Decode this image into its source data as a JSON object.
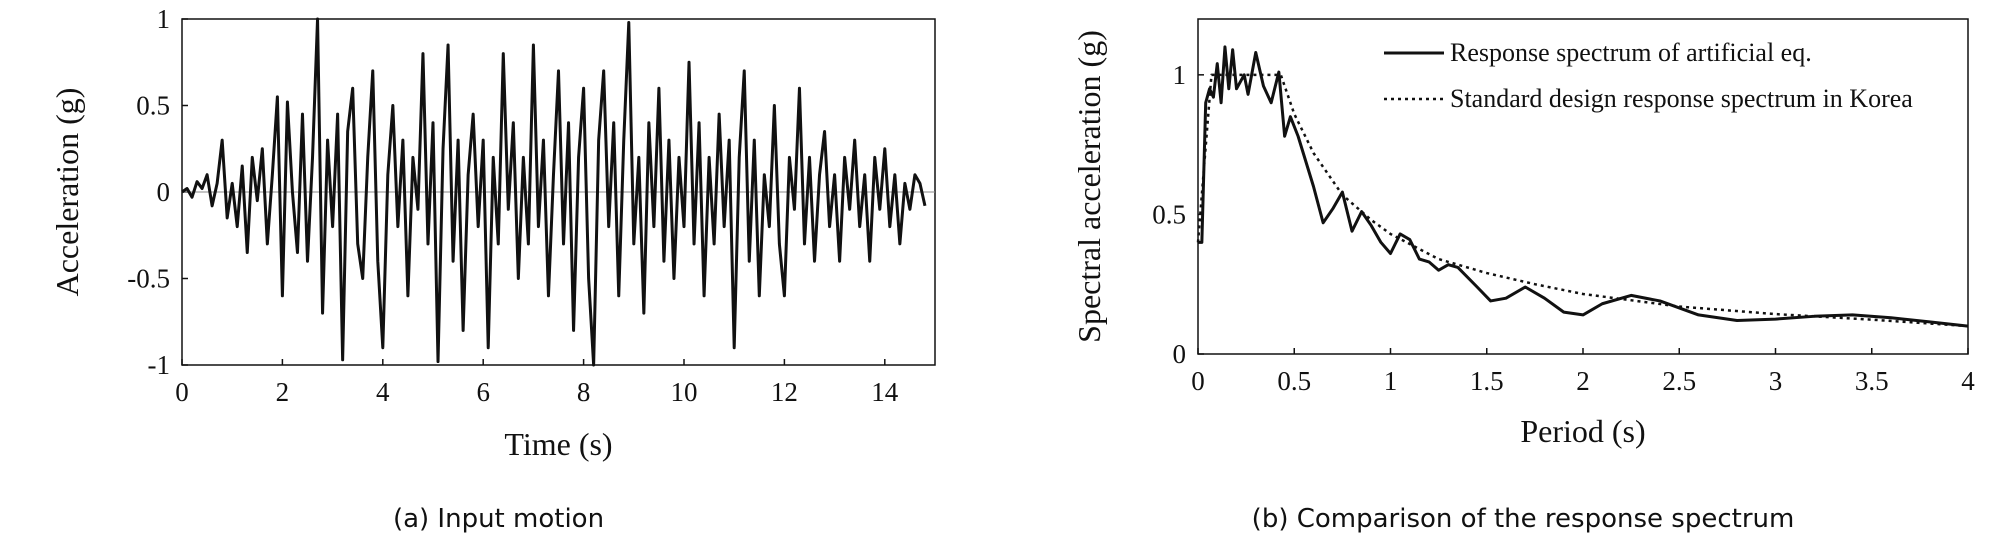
{
  "chart_data": [
    {
      "type": "line",
      "caption": "(a) Input motion",
      "xlabel": "Time (s)",
      "ylabel": "Acceleration (g)",
      "xlim": [
        0,
        15
      ],
      "xticks": [
        0,
        2,
        4,
        6,
        8,
        10,
        12,
        14
      ],
      "ylim": [
        -1,
        1
      ],
      "yticks": [
        -1,
        -0.5,
        0,
        0.5,
        1
      ],
      "x": [
        0,
        0.1,
        0.2,
        0.3,
        0.4,
        0.5,
        0.6,
        0.7,
        0.8,
        0.9,
        1,
        1.1,
        1.2,
        1.3,
        1.4,
        1.5,
        1.6,
        1.7,
        1.8,
        1.9,
        2,
        2.1,
        2.2,
        2.3,
        2.4,
        2.5,
        2.6,
        2.7,
        2.8,
        2.9,
        3,
        3.1,
        3.2,
        3.3,
        3.4,
        3.5,
        3.6,
        3.7,
        3.8,
        3.9,
        4,
        4.1,
        4.2,
        4.3,
        4.4,
        4.5,
        4.6,
        4.7,
        4.8,
        4.9,
        5,
        5.1,
        5.2,
        5.3,
        5.4,
        5.5,
        5.6,
        5.7,
        5.8,
        5.9,
        6,
        6.1,
        6.2,
        6.3,
        6.4,
        6.5,
        6.6,
        6.7,
        6.8,
        6.9,
        7,
        7.1,
        7.2,
        7.3,
        7.4,
        7.5,
        7.6,
        7.7,
        7.8,
        7.9,
        8,
        8.1,
        8.2,
        8.3,
        8.4,
        8.5,
        8.6,
        8.7,
        8.8,
        8.9,
        9,
        9.1,
        9.2,
        9.3,
        9.4,
        9.5,
        9.6,
        9.7,
        9.8,
        9.9,
        10,
        10.1,
        10.2,
        10.3,
        10.4,
        10.5,
        10.6,
        10.7,
        10.8,
        10.9,
        11,
        11.1,
        11.2,
        11.3,
        11.4,
        11.5,
        11.6,
        11.7,
        11.8,
        11.9,
        12,
        12.1,
        12.2,
        12.3,
        12.4,
        12.5,
        12.6,
        12.7,
        12.8,
        12.9,
        13,
        13.1,
        13.2,
        13.3,
        13.4,
        13.5,
        13.6,
        13.7,
        13.8,
        13.9,
        14,
        14.1,
        14.2,
        14.3,
        14.4,
        14.5,
        14.6,
        14.7,
        14.8
      ],
      "series": [
        {
          "color": "#111111",
          "dash": "solid",
          "values": [
            0,
            0.02,
            -0.03,
            0.06,
            0.02,
            0.1,
            -0.08,
            0.05,
            0.3,
            -0.15,
            0.05,
            -0.2,
            0.15,
            -0.35,
            0.2,
            -0.05,
            0.25,
            -0.3,
            0.1,
            0.55,
            -0.6,
            0.52,
            0,
            -0.35,
            0.45,
            -0.4,
            0.2,
            1,
            -0.7,
            0.3,
            -0.2,
            0.45,
            -0.97,
            0.35,
            0.6,
            -0.3,
            -0.5,
            0.2,
            0.7,
            -0.4,
            -0.9,
            0.1,
            0.5,
            -0.2,
            0.3,
            -0.6,
            0.2,
            -0.1,
            0.8,
            -0.3,
            0.4,
            -0.98,
            0.25,
            0.85,
            -0.4,
            0.3,
            -0.8,
            0.1,
            0.45,
            -0.2,
            0.3,
            -0.9,
            0.2,
            -0.3,
            0.8,
            -0.1,
            0.4,
            -0.5,
            0.2,
            -0.3,
            0.85,
            -0.2,
            0.3,
            -0.6,
            0.1,
            0.7,
            -0.3,
            0.4,
            -0.8,
            0.2,
            0.6,
            -0.5,
            -1,
            0.3,
            0.7,
            -0.2,
            0.4,
            -0.6,
            0.3,
            0.98,
            -0.3,
            0.2,
            -0.7,
            0.4,
            -0.2,
            0.6,
            -0.4,
            0.3,
            -0.5,
            0.2,
            -0.2,
            0.75,
            -0.3,
            0.4,
            -0.6,
            0.2,
            -0.3,
            0.45,
            -0.2,
            0.3,
            -0.9,
            0.2,
            0.7,
            -0.4,
            0.3,
            -0.6,
            0.1,
            -0.2,
            0.5,
            -0.3,
            -0.6,
            0.2,
            -0.1,
            0.6,
            -0.3,
            0.2,
            -0.4,
            0.1,
            0.35,
            -0.2,
            0.1,
            -0.4,
            0.2,
            -0.1,
            0.3,
            -0.2,
            0.1,
            -0.4,
            0.2,
            -0.1,
            0.25,
            -0.2,
            0.1,
            -0.3,
            0.05,
            -0.1,
            0.1,
            0.05,
            -0.08
          ]
        }
      ]
    },
    {
      "type": "line",
      "caption": "(b) Comparison of the response spectrum",
      "xlabel": "Period (s)",
      "ylabel": "Spectral acceleration (g)",
      "xlim": [
        0,
        4
      ],
      "xticks": [
        0,
        0.5,
        1,
        1.5,
        2,
        2.5,
        3,
        3.5,
        4
      ],
      "ylim": [
        0,
        1.2
      ],
      "yticks": [
        0,
        0.5,
        1
      ],
      "legend": "upper right",
      "series": [
        {
          "name": "Response spectrum of artificial eq.",
          "color": "#111111",
          "dash": "solid",
          "x": [
            0,
            0.02,
            0.04,
            0.06,
            0.08,
            0.1,
            0.12,
            0.14,
            0.16,
            0.18,
            0.2,
            0.24,
            0.26,
            0.3,
            0.34,
            0.38,
            0.42,
            0.45,
            0.48,
            0.52,
            0.6,
            0.65,
            0.7,
            0.75,
            0.8,
            0.85,
            0.9,
            0.95,
            1,
            1.05,
            1.1,
            1.15,
            1.2,
            1.25,
            1.3,
            1.35,
            1.45,
            1.52,
            1.6,
            1.7,
            1.8,
            1.9,
            2,
            2.1,
            2.25,
            2.4,
            2.6,
            2.8,
            3,
            3.2,
            3.4,
            3.6,
            3.8,
            4
          ],
          "values": [
            0.4,
            0.4,
            0.9,
            0.95,
            0.92,
            1.04,
            0.9,
            1.1,
            0.95,
            1.09,
            0.95,
            1,
            0.93,
            1.08,
            0.96,
            0.9,
            1.01,
            0.78,
            0.85,
            0.78,
            0.6,
            0.47,
            0.52,
            0.58,
            0.44,
            0.51,
            0.46,
            0.4,
            0.36,
            0.43,
            0.41,
            0.34,
            0.33,
            0.3,
            0.32,
            0.31,
            0.24,
            0.19,
            0.2,
            0.24,
            0.2,
            0.15,
            0.14,
            0.18,
            0.21,
            0.19,
            0.14,
            0.12,
            0.125,
            0.135,
            0.14,
            0.13,
            0.115,
            0.1
          ]
        },
        {
          "name": "Standard design response spectrum in Korea",
          "color": "#111111",
          "dash": "dotted",
          "x": [
            0,
            0.07,
            0.43,
            0.5,
            0.6,
            0.75,
            0.9,
            1,
            1.25,
            1.5,
            1.75,
            2,
            2.5,
            3,
            3.5,
            4
          ],
          "values": [
            0.4,
            1,
            1,
            0.86,
            0.72,
            0.57,
            0.48,
            0.43,
            0.34,
            0.29,
            0.25,
            0.215,
            0.17,
            0.143,
            0.123,
            0.1
          ]
        }
      ]
    }
  ]
}
